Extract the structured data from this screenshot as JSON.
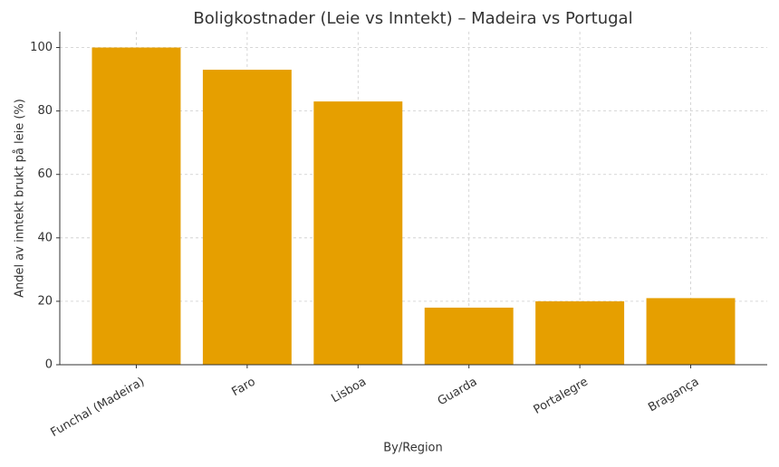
{
  "chart_data": {
    "type": "bar",
    "title": "Boligkostnader (Leie vs Inntekt) – Madeira vs Portugal",
    "x_label": "By/Region",
    "y_label": "Andel av inntekt brukt på leie (%)",
    "categories": [
      "Funchal (Madeira)",
      "Faro",
      "Lisboa",
      "Guarda",
      "Portalegre",
      "Bragança"
    ],
    "values": [
      100,
      93,
      83,
      18,
      20,
      21
    ],
    "color": "#e69f00",
    "ylim": [
      0,
      105
    ],
    "yticks": [
      0,
      20,
      40,
      60,
      80,
      100
    ],
    "grid": true
  }
}
